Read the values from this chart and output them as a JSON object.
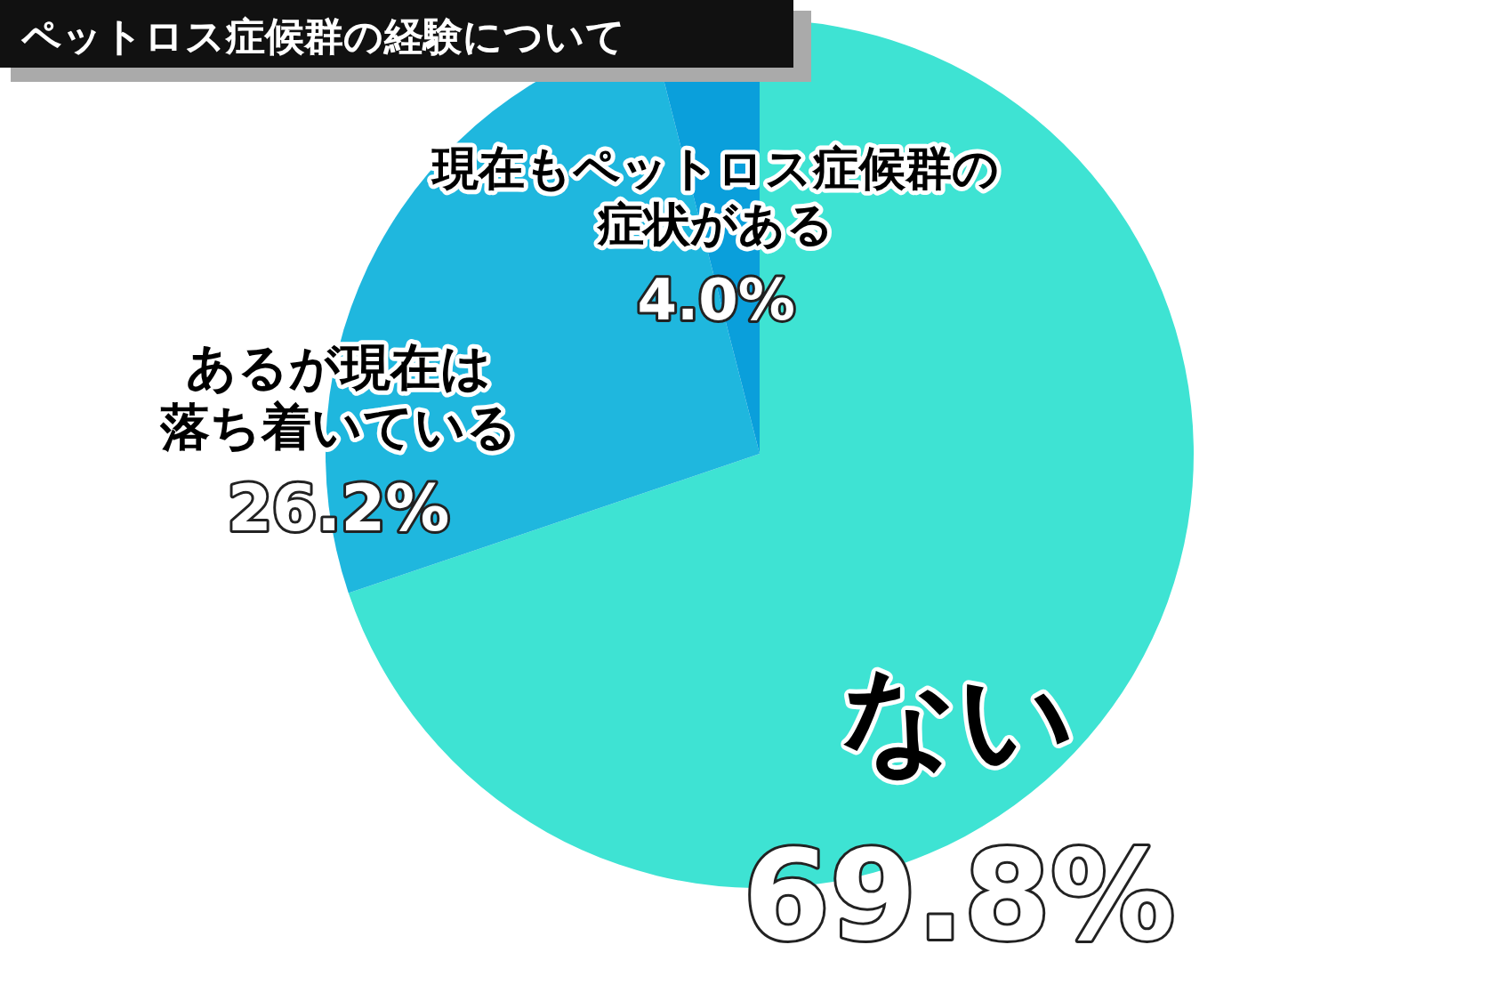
{
  "chart_data": {
    "type": "pie",
    "title": "ペットロス症候群の経験について",
    "categories": [
      "ない",
      "あるが現在は落ち着いている",
      "現在もペットロス症候群の症状がある"
    ],
    "values": [
      69.8,
      26.2,
      4.0
    ],
    "value_labels": [
      "69.8%",
      "26.2%",
      "4.0%"
    ],
    "colors": [
      "#3ee3d3",
      "#1fb7de",
      "#0a9fdb"
    ],
    "legend": false
  }
}
